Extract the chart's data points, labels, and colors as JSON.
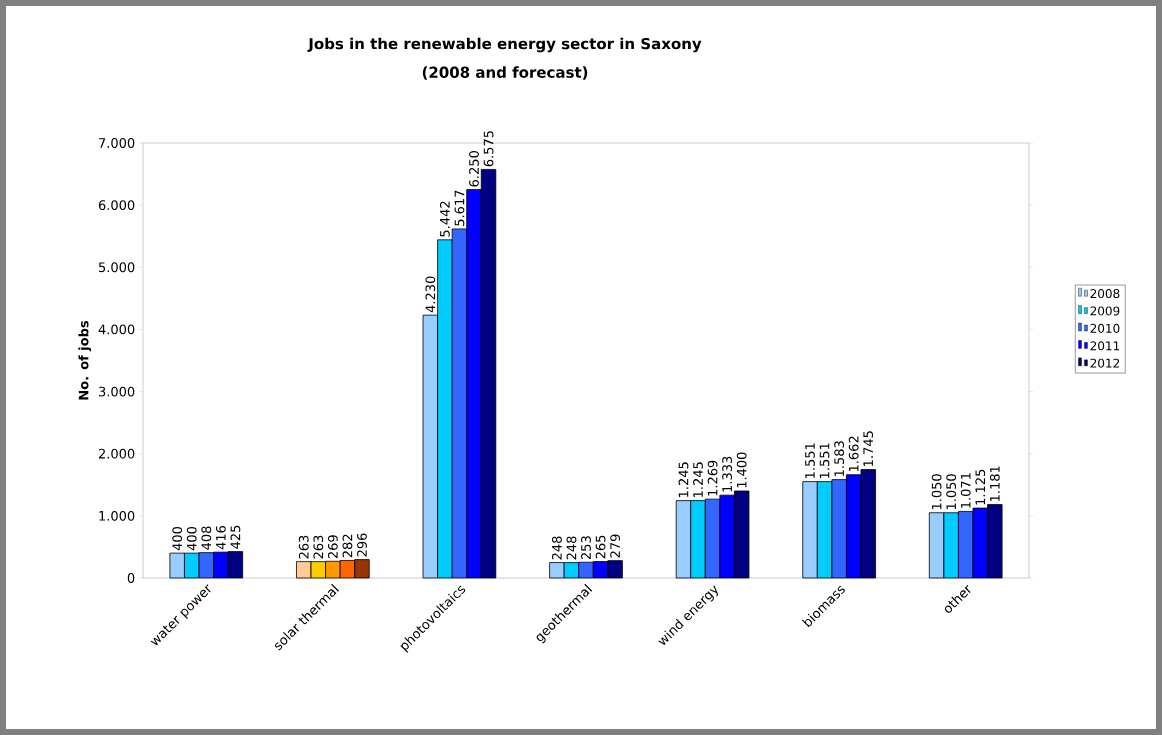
{
  "chart_data": {
    "type": "bar",
    "title": "Jobs in the renewable energy sector in Saxony",
    "subtitle": "(2008 and forecast)",
    "ylabel": "No. of jobs",
    "categories": [
      "water power",
      "solar thermal",
      "photovoltaics",
      "geothermal",
      "wind energy",
      "biomass",
      "other"
    ],
    "ylim": [
      0,
      7000
    ],
    "yticks": [
      {
        "value": 0,
        "label": "0"
      },
      {
        "value": 1000,
        "label": "1.000"
      },
      {
        "value": 2000,
        "label": "2.000"
      },
      {
        "value": 3000,
        "label": "3.000"
      },
      {
        "value": 4000,
        "label": "4.000"
      },
      {
        "value": 5000,
        "label": "5.000"
      },
      {
        "value": 6000,
        "label": "6.000"
      },
      {
        "value": 7000,
        "label": "7.000"
      }
    ],
    "grid": false,
    "legend": "right",
    "series": [
      {
        "name": "2008",
        "color": "#99ccff",
        "colors": [
          "#99ccff",
          "#ffcc99",
          "#99ccff",
          "#99ccff",
          "#99ccff",
          "#99ccff",
          "#99ccff"
        ],
        "values": [
          400,
          263,
          4230,
          248,
          1245,
          1551,
          1050
        ],
        "value_labels": [
          "400",
          "263",
          "4.230",
          "248",
          "1.245",
          "1.551",
          "1.050"
        ]
      },
      {
        "name": "2009",
        "color": "#00ccff",
        "colors": [
          "#00ccff",
          "#ffcc00",
          "#00ccff",
          "#00ccff",
          "#00ccff",
          "#00ccff",
          "#00ccff"
        ],
        "values": [
          400,
          263,
          5442,
          248,
          1245,
          1551,
          1050
        ],
        "value_labels": [
          "400",
          "263",
          "5.442",
          "248",
          "1.245",
          "1.551",
          "1.050"
        ]
      },
      {
        "name": "2010",
        "color": "#3366ff",
        "colors": [
          "#3366ff",
          "#ff9900",
          "#3366ff",
          "#3366ff",
          "#3366ff",
          "#3366ff",
          "#3366ff"
        ],
        "values": [
          408,
          269,
          5617,
          253,
          1269,
          1583,
          1071
        ],
        "value_labels": [
          "408",
          "269",
          "5.617",
          "253",
          "1.269",
          "1.583",
          "1.071"
        ]
      },
      {
        "name": "2011",
        "color": "#0000ff",
        "colors": [
          "#0000ff",
          "#ff6600",
          "#0000ff",
          "#0000ff",
          "#0000ff",
          "#0000ff",
          "#0000ff"
        ],
        "values": [
          416,
          282,
          6250,
          265,
          1333,
          1662,
          1125
        ],
        "value_labels": [
          "416",
          "282",
          "6.250",
          "265",
          "1.333",
          "1.662",
          "1.125"
        ]
      },
      {
        "name": "2012",
        "color": "#000080",
        "colors": [
          "#000080",
          "#993300",
          "#000080",
          "#000080",
          "#000080",
          "#000080",
          "#000080"
        ],
        "values": [
          425,
          296,
          6575,
          279,
          1400,
          1745,
          1181
        ],
        "value_labels": [
          "425",
          "296",
          "6.575",
          "279",
          "1.400",
          "1.745",
          "1.181"
        ]
      }
    ]
  }
}
